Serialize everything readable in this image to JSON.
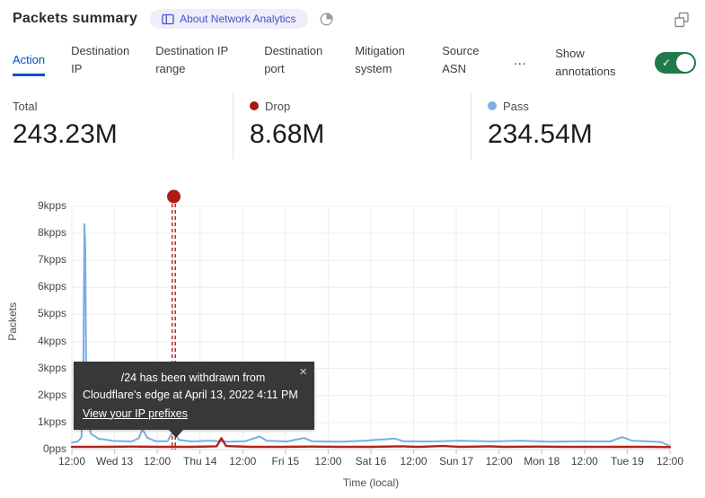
{
  "header": {
    "title": "Packets summary",
    "about_badge": {
      "label": "About Network Analytics"
    }
  },
  "tabs": [
    {
      "label": "Action",
      "active": true
    },
    {
      "label": "Destination IP",
      "active": false
    },
    {
      "label": "Destination IP range",
      "active": false
    },
    {
      "label": "Destination port",
      "active": false
    },
    {
      "label": "Mitigation system",
      "active": false
    },
    {
      "label": "Source ASN",
      "active": false
    }
  ],
  "more_tabs_label": "…",
  "annotations_toggle": {
    "label": "Show annotations",
    "enabled": true,
    "check_glyph": "✓",
    "on_color": "#1f7a48"
  },
  "stats": [
    {
      "label": "Total",
      "value": "243.23M"
    },
    {
      "label": "Drop",
      "value": "8.68M",
      "dot_color": "#a6170d"
    },
    {
      "label": "Pass",
      "value": "234.54M",
      "dot_color": "#7dafe4"
    }
  ],
  "chart_data": {
    "type": "line",
    "title": "",
    "xlabel": "Time (local)",
    "ylabel": "Packets",
    "y_unit": "kpps",
    "ylim": [
      0,
      9
    ],
    "grid": true,
    "y_ticks": [
      "0pps",
      "1kpps",
      "2kpps",
      "3kpps",
      "4kpps",
      "5kpps",
      "6kpps",
      "7kpps",
      "8kpps",
      "9kpps"
    ],
    "x_ticks": [
      "12:00",
      "Wed 13",
      "12:00",
      "Thu 14",
      "12:00",
      "Fri 15",
      "12:00",
      "Sat 16",
      "12:00",
      "Sun 17",
      "12:00",
      "Mon 18",
      "12:00",
      "Tue 19",
      "12:00"
    ],
    "series": [
      {
        "name": "Pass",
        "color": "#79aee6",
        "width": 2,
        "points": [
          [
            0.0,
            0.26
          ],
          [
            0.01,
            0.3
          ],
          [
            0.016,
            0.45
          ],
          [
            0.019,
            2.3
          ],
          [
            0.021,
            8.35
          ],
          [
            0.0225,
            7.5
          ],
          [
            0.024,
            2.4
          ],
          [
            0.027,
            1.05
          ],
          [
            0.032,
            0.58
          ],
          [
            0.045,
            0.4
          ],
          [
            0.07,
            0.32
          ],
          [
            0.1,
            0.3
          ],
          [
            0.112,
            0.42
          ],
          [
            0.118,
            0.76
          ],
          [
            0.126,
            0.44
          ],
          [
            0.14,
            0.31
          ],
          [
            0.16,
            0.31
          ],
          [
            0.166,
            0.56
          ],
          [
            0.172,
            0.62
          ],
          [
            0.179,
            0.36
          ],
          [
            0.2,
            0.3
          ],
          [
            0.23,
            0.33
          ],
          [
            0.26,
            0.29
          ],
          [
            0.29,
            0.31
          ],
          [
            0.314,
            0.48
          ],
          [
            0.326,
            0.33
          ],
          [
            0.36,
            0.3
          ],
          [
            0.388,
            0.43
          ],
          [
            0.401,
            0.31
          ],
          [
            0.45,
            0.29
          ],
          [
            0.49,
            0.33
          ],
          [
            0.54,
            0.41
          ],
          [
            0.554,
            0.31
          ],
          [
            0.6,
            0.3
          ],
          [
            0.65,
            0.33
          ],
          [
            0.7,
            0.3
          ],
          [
            0.75,
            0.33
          ],
          [
            0.8,
            0.29
          ],
          [
            0.85,
            0.31
          ],
          [
            0.9,
            0.3
          ],
          [
            0.92,
            0.46
          ],
          [
            0.936,
            0.33
          ],
          [
            0.96,
            0.31
          ],
          [
            0.985,
            0.28
          ],
          [
            1.0,
            0.13
          ]
        ]
      },
      {
        "name": "Drop",
        "color": "#b32318",
        "width": 2.4,
        "points": [
          [
            0.0,
            0.1
          ],
          [
            0.05,
            0.1
          ],
          [
            0.1,
            0.11
          ],
          [
            0.15,
            0.1
          ],
          [
            0.2,
            0.1
          ],
          [
            0.242,
            0.12
          ],
          [
            0.25,
            0.42
          ],
          [
            0.258,
            0.13
          ],
          [
            0.3,
            0.1
          ],
          [
            0.35,
            0.1
          ],
          [
            0.4,
            0.11
          ],
          [
            0.45,
            0.1
          ],
          [
            0.5,
            0.1
          ],
          [
            0.55,
            0.12
          ],
          [
            0.58,
            0.1
          ],
          [
            0.62,
            0.13
          ],
          [
            0.65,
            0.1
          ],
          [
            0.7,
            0.12
          ],
          [
            0.72,
            0.1
          ],
          [
            0.78,
            0.11
          ],
          [
            0.82,
            0.1
          ],
          [
            0.88,
            0.1
          ],
          [
            0.93,
            0.1
          ],
          [
            0.97,
            0.1
          ],
          [
            1.0,
            0.09
          ]
        ]
      }
    ],
    "annotation": {
      "x_fraction": 0.1704,
      "color": "#b01a10"
    }
  },
  "tooltip": {
    "line1": "/24 has been withdrawn from",
    "line2": "Cloudflare's edge at April 13, 2022 4:11 PM",
    "link_label": "View your IP prefixes",
    "close_glyph": "×"
  }
}
